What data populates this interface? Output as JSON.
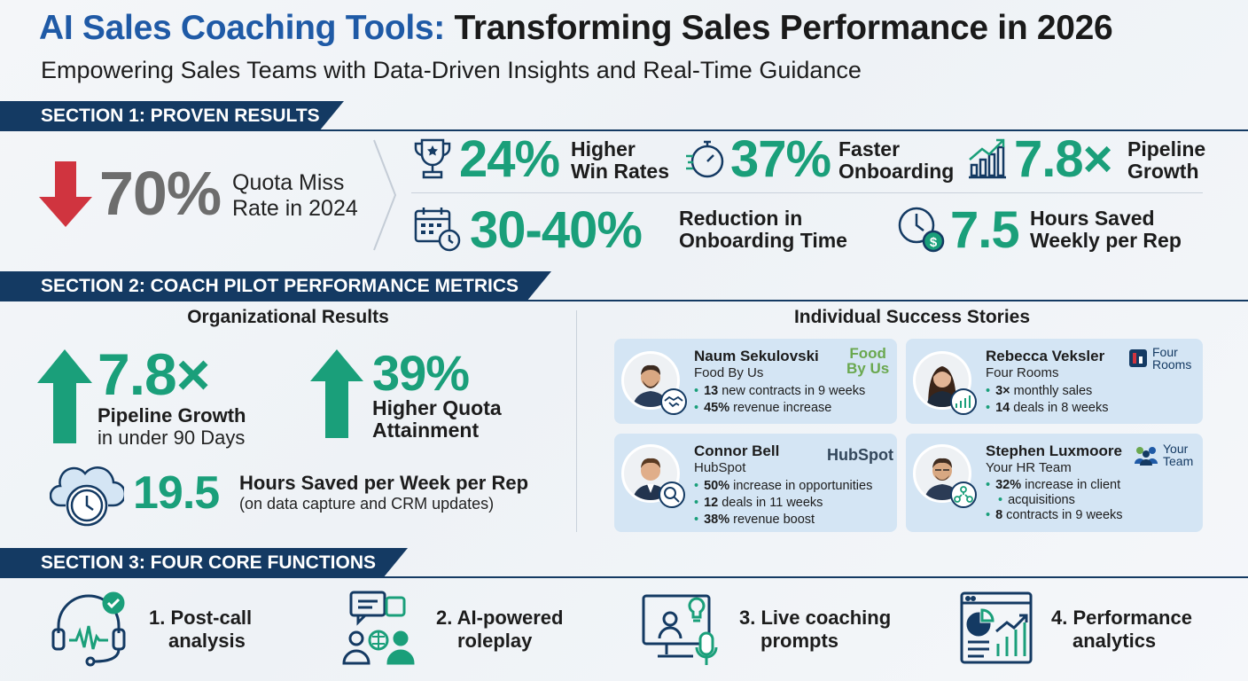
{
  "header": {
    "title_part1": "AI Sales Coaching Tools:",
    "title_part2": "Transforming Sales Performance in 2026",
    "subtitle": "Empowering Sales Teams with Data-Driven Insights and Real-Time Guidance"
  },
  "section1": {
    "banner": "SECTION 1: PROVEN RESULTS",
    "quota_miss": {
      "value": "70%",
      "line1": "Quota Miss",
      "line2": "Rate in 2024"
    },
    "stats": [
      {
        "value": "24%",
        "line1": "Higher",
        "line2": "Win Rates",
        "icon": "trophy-icon"
      },
      {
        "value": "37%",
        "line1": "Faster",
        "line2": "Onboarding",
        "icon": "stopwatch-icon"
      },
      {
        "value": "7.8×",
        "line1": "Pipeline",
        "line2": "Growth",
        "icon": "growth-chart-icon"
      },
      {
        "value": "30-40%",
        "line1": "Reduction in",
        "line2": "Onboarding Time",
        "icon": "calendar-clock-icon"
      },
      {
        "value": "7.5",
        "line1": "Hours Saved",
        "line2": "Weekly per Rep",
        "icon": "clock-dollar-icon"
      }
    ]
  },
  "section2": {
    "banner": "SECTION 2: COACH PILOT PERFORMANCE METRICS",
    "org": {
      "heading": "Organizational Results",
      "pipeline": {
        "value": "7.8×",
        "label": "Pipeline Growth",
        "sub": "in under 90 Days"
      },
      "quota": {
        "value": "39%",
        "line1": "Higher Quota",
        "line2": "Attainment"
      },
      "hours": {
        "value": "19.5",
        "label": "Hours Saved per Week per Rep",
        "sub": "(on data capture and CRM updates)"
      }
    },
    "individual": {
      "heading": "Individual Success Stories",
      "stories": [
        {
          "name": "Naum Sekulovski",
          "company": "Food By Us",
          "logo_line1": "Food",
          "logo_line2": "By Us",
          "bullets": [
            {
              "b": "13",
              "t": " new contracts in 9 weeks"
            },
            {
              "b": "45%",
              "t": " revenue increase"
            }
          ]
        },
        {
          "name": "Rebecca Veksler",
          "company": "Four Rooms",
          "logo_line1": "Four",
          "logo_line2": "Rooms",
          "bullets": [
            {
              "b": "3×",
              "t": " monthly sales"
            },
            {
              "b": "14",
              "t": " deals in 8 weeks"
            }
          ]
        },
        {
          "name": "Connor Bell",
          "company": "HubSpot",
          "logo_line1": "HubSpot",
          "logo_line2": "",
          "bullets": [
            {
              "b": "50%",
              "t": " increase in opportunities"
            },
            {
              "b": "12",
              "t": " deals in 11 weeks"
            },
            {
              "b": "38%",
              "t": " revenue boost"
            }
          ]
        },
        {
          "name": "Stephen Luxmoore",
          "company": "Your HR Team",
          "logo_line1": "Your",
          "logo_line2": "Team",
          "bullets": [
            {
              "b": "32%",
              "t": " increase in client"
            },
            {
              "b": "",
              "t": "acquisitions"
            },
            {
              "b": "8",
              "t": " contracts in 9 weeks"
            }
          ]
        }
      ]
    }
  },
  "section3": {
    "banner": "SECTION 3: FOUR CORE FUNCTIONS",
    "functions": [
      {
        "line1": "1. Post-call",
        "line2": "analysis",
        "icon": "headset-waveform-icon"
      },
      {
        "line1": "2. AI-powered",
        "line2": "roleplay",
        "icon": "roleplay-chat-icon"
      },
      {
        "line1": "3. Live coaching",
        "line2": "prompts",
        "icon": "monitor-microphone-icon"
      },
      {
        "line1": "4. Performance",
        "line2": "analytics",
        "icon": "analytics-dashboard-icon"
      }
    ]
  },
  "colors": {
    "green": "#1a9f7a",
    "navy": "#143a63",
    "blue": "#1f5aa6",
    "red": "#d0343f",
    "card": "#d4e5f4"
  }
}
